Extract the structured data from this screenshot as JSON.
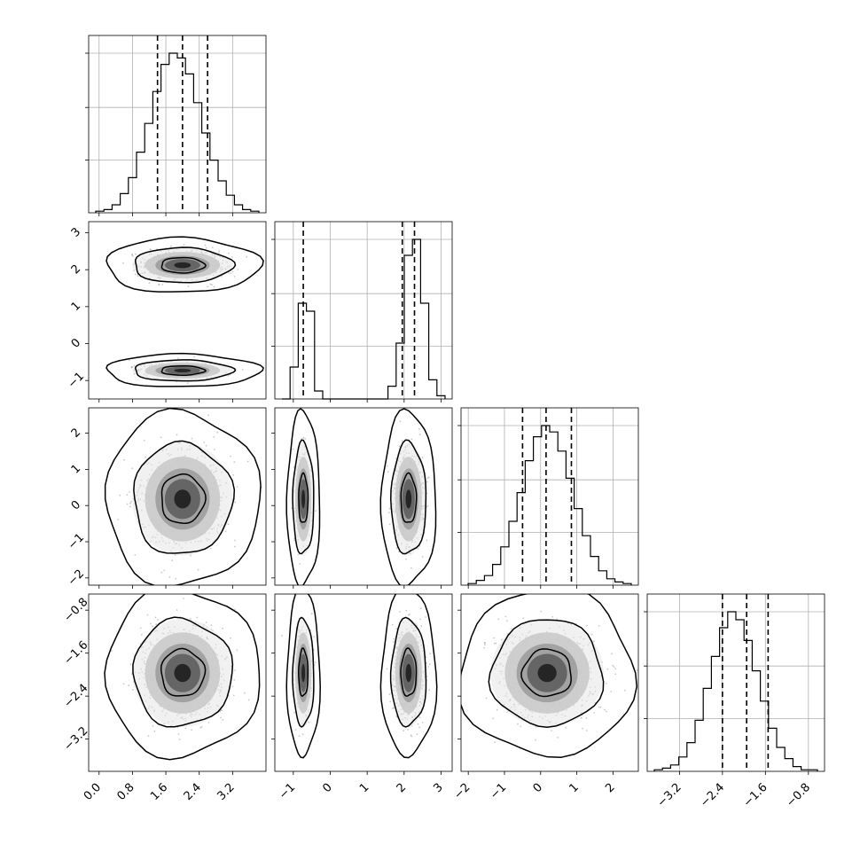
{
  "chart_data": {
    "type": "corner",
    "ticks": {
      "p0": [
        "0.0",
        "0.8",
        "1.6",
        "2.4",
        "3.2"
      ],
      "p1": [
        "−1",
        "0",
        "1",
        "2",
        "3"
      ],
      "p2": [
        "−2",
        "−1",
        "0",
        "1",
        "2"
      ],
      "p3": [
        "−3.2",
        "−2.4",
        "−1.6",
        "−0.8"
      ]
    },
    "params": [
      {
        "lim": [
          -0.25,
          4.0
        ],
        "ticks": [
          0.0,
          0.8,
          1.6,
          2.4,
          3.2
        ],
        "quantiles": [
          1.4,
          2.0,
          2.6
        ]
      },
      {
        "lim": [
          -1.5,
          3.3
        ],
        "ticks": [
          -1,
          0,
          1,
          2,
          3
        ],
        "quantiles": [
          -0.73,
          1.95,
          2.28
        ]
      },
      {
        "lim": [
          -2.2,
          2.7
        ],
        "ticks": [
          -2,
          -1,
          0,
          1,
          2
        ],
        "quantiles": [
          -0.5,
          0.15,
          0.85
        ]
      },
      {
        "lim": [
          -3.8,
          -0.5
        ],
        "ticks": [
          -3.2,
          -2.4,
          -1.6,
          -0.8
        ],
        "quantiles": [
          -2.4,
          -1.95,
          -1.55
        ]
      }
    ],
    "hist": [
      {
        "bins": 20,
        "values": [
          0.01,
          0.02,
          0.05,
          0.12,
          0.22,
          0.38,
          0.56,
          0.76,
          0.93,
          1.0,
          0.97,
          0.87,
          0.69,
          0.5,
          0.33,
          0.2,
          0.11,
          0.05,
          0.02,
          0.01
        ]
      },
      {
        "bins": 20,
        "values": [
          0.0,
          0.2,
          0.6,
          0.55,
          0.05,
          0.0,
          0.0,
          0.0,
          0.0,
          0.0,
          0.0,
          0.0,
          0.0,
          0.08,
          0.35,
          0.9,
          1.0,
          0.6,
          0.12,
          0.02
        ]
      },
      {
        "bins": 20,
        "values": [
          0.01,
          0.03,
          0.06,
          0.13,
          0.24,
          0.4,
          0.58,
          0.78,
          0.93,
          1.0,
          0.96,
          0.84,
          0.67,
          0.48,
          0.31,
          0.18,
          0.09,
          0.04,
          0.02,
          0.01
        ]
      },
      {
        "bins": 20,
        "values": [
          0.01,
          0.02,
          0.04,
          0.09,
          0.18,
          0.32,
          0.52,
          0.72,
          0.9,
          1.0,
          0.95,
          0.82,
          0.63,
          0.44,
          0.27,
          0.15,
          0.08,
          0.03,
          0.01,
          0.01
        ]
      }
    ],
    "components": {
      "p0": [
        {
          "mean": 2.0,
          "sd": 0.5,
          "weight": 1.0
        }
      ],
      "p1": [
        {
          "mean": -0.73,
          "sd": 0.12,
          "weight": 0.3
        },
        {
          "mean": 2.12,
          "sd": 0.2,
          "weight": 0.7
        }
      ],
      "p2": [
        {
          "mean": 0.18,
          "sd": 0.65,
          "weight": 1.0
        }
      ],
      "p3": [
        {
          "mean": -1.97,
          "sd": 0.42,
          "weight": 1.0
        }
      ]
    },
    "grid": true
  }
}
